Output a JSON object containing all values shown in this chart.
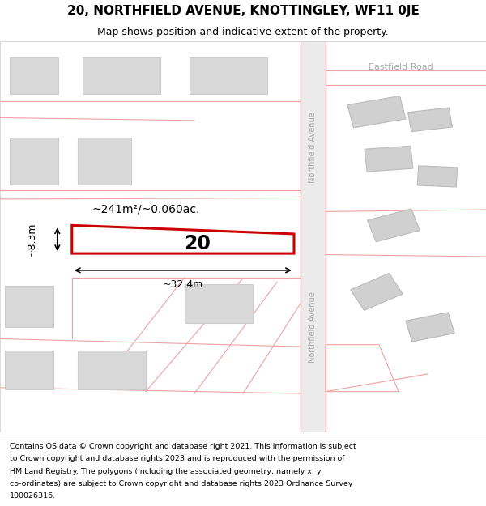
{
  "title": "20, NORTHFIELD AVENUE, KNOTTINGLEY, WF11 0JE",
  "subtitle": "Map shows position and indicative extent of the property.",
  "footer_lines": [
    "Contains OS data © Crown copyright and database right 2021. This information is subject",
    "to Crown copyright and database rights 2023 and is reproduced with the permission of",
    "HM Land Registry. The polygons (including the associated geometry, namely x, y",
    "co-ordinates) are subject to Crown copyright and database rights 2023 Ordnance Survey",
    "100026316."
  ],
  "map_bg": "#ffffff",
  "road_color": "#e8e8e8",
  "building_fill": "#d8d8d8",
  "building_edge": "#cccccc",
  "plot_outline_color": "#cc0000",
  "plot_fill": "#ffffff",
  "road_line_color": "#f0a0a0",
  "road_text_color": "#aaaaaa",
  "plot_label": "20",
  "area_label": "~241m²/~0.060ac.",
  "width_label": "~32.4m",
  "height_label": "~8.3m",
  "title_fontsize": 11,
  "subtitle_fontsize": 9,
  "footer_fontsize": 6.8
}
